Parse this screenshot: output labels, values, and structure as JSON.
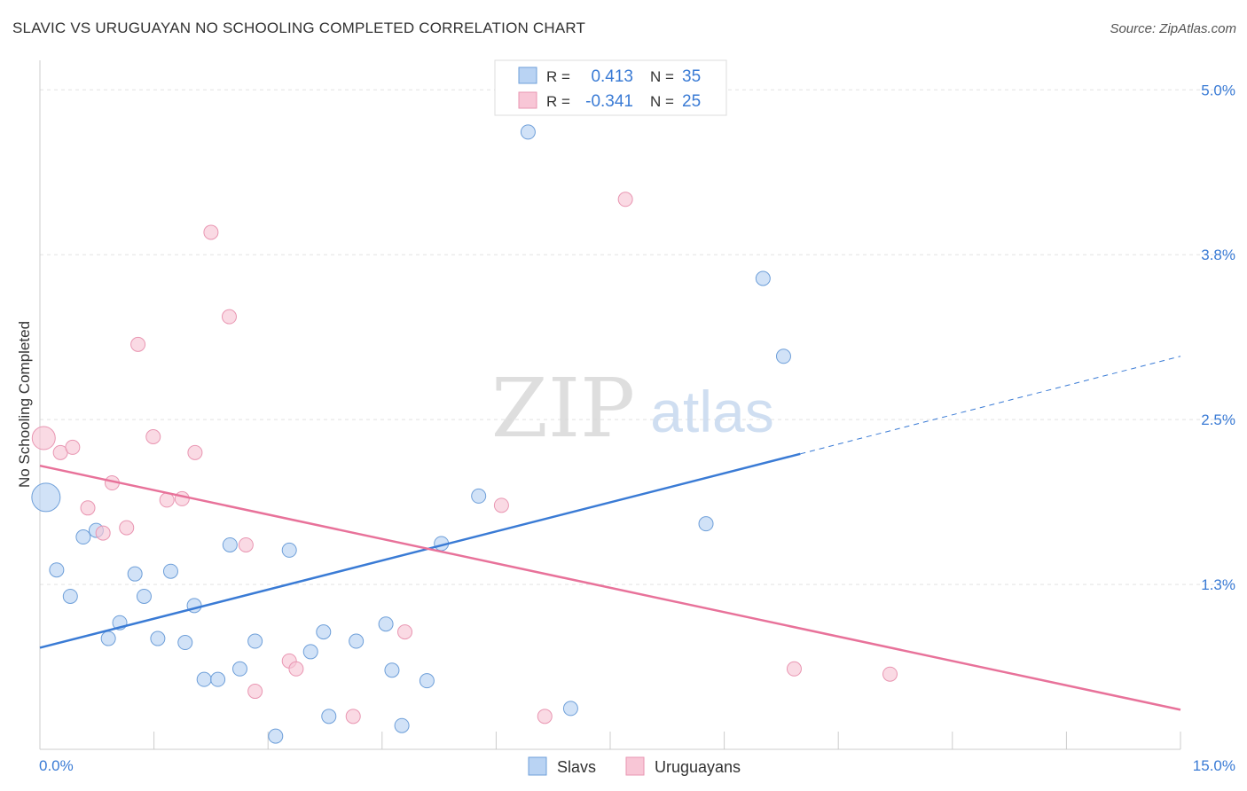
{
  "title": "SLAVIC VS URUGUAYAN NO SCHOOLING COMPLETED CORRELATION CHART",
  "source": "Source: ZipAtlas.com",
  "watermark": {
    "zip": "ZIP",
    "atlas": "atlas"
  },
  "legend_top": {
    "r_label": "R =",
    "n_label": "N =",
    "rows": [
      {
        "series": "Slavs",
        "r": "0.413",
        "n": "35"
      },
      {
        "series": "Uruguayans",
        "r": "-0.341",
        "n": "25"
      }
    ]
  },
  "chart_data": {
    "type": "scatter",
    "xlabel": "",
    "ylabel": "No Schooling Completed",
    "xlim": [
      0,
      15
    ],
    "ylim": [
      0,
      5.15
    ],
    "x_tick_labels": [
      {
        "value": 0,
        "label": "0.0%"
      },
      {
        "value": 15,
        "label": "15.0%"
      }
    ],
    "y_tick_labels": [
      {
        "value": 1.25,
        "label": "1.3%"
      },
      {
        "value": 2.5,
        "label": "2.5%"
      },
      {
        "value": 3.75,
        "label": "3.8%"
      },
      {
        "value": 5.0,
        "label": "5.0%"
      }
    ],
    "colors": {
      "Slavs": "#3a7bd5",
      "Uruguayans": "#e8729a"
    },
    "series": [
      {
        "name": "Slavs",
        "points": [
          {
            "x": 0.08,
            "y": 1.91,
            "size": 16
          },
          {
            "x": 0.22,
            "y": 1.36,
            "size": 8
          },
          {
            "x": 0.4,
            "y": 1.16,
            "size": 8
          },
          {
            "x": 0.57,
            "y": 1.61,
            "size": 8
          },
          {
            "x": 0.74,
            "y": 1.66,
            "size": 8
          },
          {
            "x": 0.9,
            "y": 0.84,
            "size": 8
          },
          {
            "x": 1.05,
            "y": 0.96,
            "size": 8
          },
          {
            "x": 1.25,
            "y": 1.33,
            "size": 8
          },
          {
            "x": 1.37,
            "y": 1.16,
            "size": 8
          },
          {
            "x": 1.55,
            "y": 0.84,
            "size": 8
          },
          {
            "x": 1.72,
            "y": 1.35,
            "size": 8
          },
          {
            "x": 1.91,
            "y": 0.81,
            "size": 8
          },
          {
            "x": 2.03,
            "y": 1.09,
            "size": 8
          },
          {
            "x": 2.16,
            "y": 0.53,
            "size": 8
          },
          {
            "x": 2.34,
            "y": 0.53,
            "size": 8
          },
          {
            "x": 2.5,
            "y": 1.55,
            "size": 8
          },
          {
            "x": 2.63,
            "y": 0.61,
            "size": 8
          },
          {
            "x": 2.83,
            "y": 0.82,
            "size": 8
          },
          {
            "x": 3.1,
            "y": 0.1,
            "size": 8
          },
          {
            "x": 3.28,
            "y": 1.51,
            "size": 8
          },
          {
            "x": 3.56,
            "y": 0.74,
            "size": 8
          },
          {
            "x": 3.73,
            "y": 0.89,
            "size": 8
          },
          {
            "x": 3.8,
            "y": 0.25,
            "size": 8
          },
          {
            "x": 4.16,
            "y": 0.82,
            "size": 8
          },
          {
            "x": 4.55,
            "y": 0.95,
            "size": 8
          },
          {
            "x": 4.63,
            "y": 0.6,
            "size": 8
          },
          {
            "x": 4.76,
            "y": 0.18,
            "size": 8
          },
          {
            "x": 5.09,
            "y": 0.52,
            "size": 8
          },
          {
            "x": 5.28,
            "y": 1.56,
            "size": 8
          },
          {
            "x": 5.77,
            "y": 1.92,
            "size": 8
          },
          {
            "x": 6.42,
            "y": 4.68,
            "size": 8
          },
          {
            "x": 6.98,
            "y": 0.31,
            "size": 8
          },
          {
            "x": 8.76,
            "y": 1.71,
            "size": 8
          },
          {
            "x": 9.51,
            "y": 3.57,
            "size": 8
          },
          {
            "x": 9.78,
            "y": 2.98,
            "size": 8
          }
        ],
        "trend": {
          "x1": 0,
          "y1": 0.77,
          "x2": 10,
          "y2": 2.24,
          "dashed_to": 15,
          "dashed_y": 2.98
        }
      },
      {
        "name": "Uruguayans",
        "points": [
          {
            "x": 0.05,
            "y": 2.36,
            "size": 13
          },
          {
            "x": 0.27,
            "y": 2.25,
            "size": 8
          },
          {
            "x": 0.43,
            "y": 2.29,
            "size": 8
          },
          {
            "x": 0.63,
            "y": 1.83,
            "size": 8
          },
          {
            "x": 0.83,
            "y": 1.64,
            "size": 8
          },
          {
            "x": 0.95,
            "y": 2.02,
            "size": 8
          },
          {
            "x": 1.14,
            "y": 1.68,
            "size": 8
          },
          {
            "x": 1.29,
            "y": 3.07,
            "size": 8
          },
          {
            "x": 1.49,
            "y": 2.37,
            "size": 8
          },
          {
            "x": 1.67,
            "y": 1.89,
            "size": 8
          },
          {
            "x": 1.87,
            "y": 1.9,
            "size": 8
          },
          {
            "x": 2.04,
            "y": 2.25,
            "size": 8
          },
          {
            "x": 2.25,
            "y": 3.92,
            "size": 8
          },
          {
            "x": 2.49,
            "y": 3.28,
            "size": 8
          },
          {
            "x": 2.71,
            "y": 1.55,
            "size": 8
          },
          {
            "x": 2.83,
            "y": 0.44,
            "size": 8
          },
          {
            "x": 3.28,
            "y": 0.67,
            "size": 8
          },
          {
            "x": 3.37,
            "y": 0.61,
            "size": 8
          },
          {
            "x": 4.12,
            "y": 0.25,
            "size": 8
          },
          {
            "x": 4.8,
            "y": 0.89,
            "size": 8
          },
          {
            "x": 6.07,
            "y": 1.85,
            "size": 8
          },
          {
            "x": 6.64,
            "y": 0.25,
            "size": 8
          },
          {
            "x": 7.7,
            "y": 4.17,
            "size": 8
          },
          {
            "x": 9.92,
            "y": 0.61,
            "size": 8
          },
          {
            "x": 11.18,
            "y": 0.57,
            "size": 8
          }
        ],
        "trend": {
          "x1": 0,
          "y1": 2.15,
          "x2": 15,
          "y2": 0.3
        }
      }
    ]
  },
  "legend_bottom": [
    {
      "name": "Slavs"
    },
    {
      "name": "Uruguayans"
    }
  ]
}
